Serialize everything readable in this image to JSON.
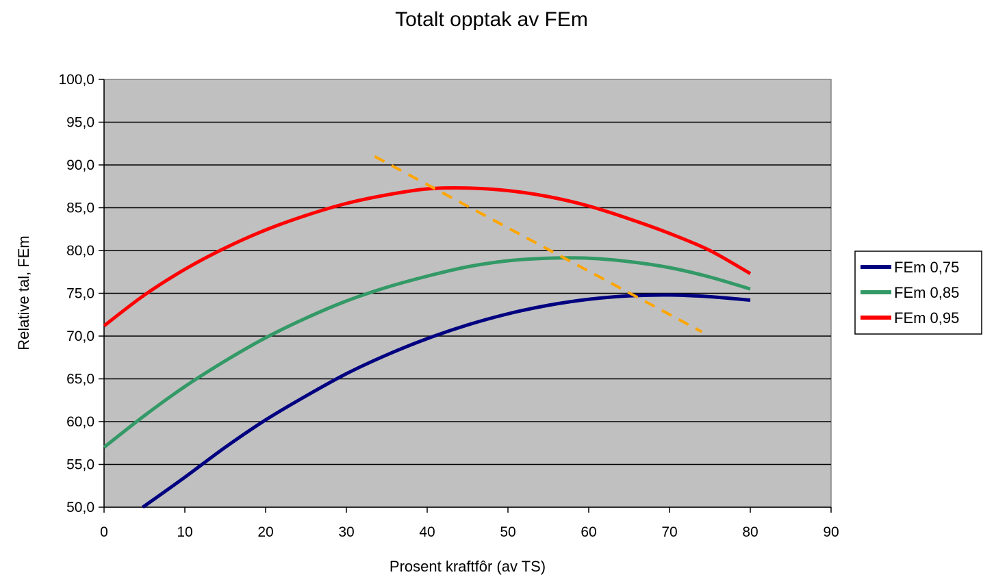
{
  "chart_data": {
    "type": "line",
    "title": "Totalt opptak av FEm",
    "xlabel": "Prosent kraftfôr (av TS)",
    "ylabel": "Relative tal,  FEm",
    "xlim": [
      0,
      90
    ],
    "ylim": [
      50,
      100
    ],
    "x_ticks": [
      0,
      10,
      20,
      30,
      40,
      50,
      60,
      70,
      80,
      90
    ],
    "x_tick_labels": [
      "0",
      "10",
      "20",
      "30",
      "40",
      "50",
      "60",
      "70",
      "80",
      "90"
    ],
    "y_ticks": [
      50,
      55,
      60,
      65,
      70,
      75,
      80,
      85,
      90,
      95,
      100
    ],
    "y_tick_labels": [
      "50,0",
      "55,0",
      "60,0",
      "65,0",
      "70,0",
      "75,0",
      "80,0",
      "85,0",
      "90,0",
      "95,0",
      "100,0"
    ],
    "grid": "horizontal",
    "legend_position": "right",
    "plot_background": "#c0c0c0",
    "x": [
      0,
      5,
      10,
      15,
      20,
      25,
      30,
      35,
      40,
      45,
      50,
      55,
      60,
      65,
      70,
      75,
      80
    ],
    "series": [
      {
        "name": "FEm 0,75",
        "color": "#000080",
        "x": [
          4.8,
          10,
          15,
          20,
          25,
          30,
          35,
          40,
          45,
          50,
          55,
          60,
          65,
          70,
          75,
          80
        ],
        "values": [
          50.0,
          53.5,
          57.0,
          60.2,
          63.0,
          65.6,
          67.8,
          69.7,
          71.3,
          72.6,
          73.6,
          74.3,
          74.7,
          74.8,
          74.6,
          74.2
        ]
      },
      {
        "name": "FEm 0,85",
        "color": "#339966",
        "x": [
          0,
          5,
          10,
          15,
          20,
          25,
          30,
          35,
          40,
          45,
          50,
          55,
          60,
          65,
          70,
          75,
          80
        ],
        "values": [
          57.0,
          60.7,
          64.1,
          67.1,
          69.8,
          72.1,
          74.1,
          75.7,
          77.0,
          78.1,
          78.8,
          79.1,
          79.1,
          78.7,
          78.0,
          76.9,
          75.5
        ]
      },
      {
        "name": "FEm 0,95",
        "color": "#ff0000",
        "x": [
          0,
          5,
          10,
          15,
          20,
          25,
          30,
          35,
          40,
          45,
          50,
          55,
          60,
          65,
          70,
          75,
          80
        ],
        "values": [
          71.2,
          74.8,
          77.8,
          80.3,
          82.4,
          84.1,
          85.5,
          86.5,
          87.2,
          87.3,
          87.0,
          86.3,
          85.2,
          83.7,
          82.0,
          80.0,
          77.3
        ]
      }
    ],
    "annotation_line": {
      "style": "dashed",
      "color": "#ffa500",
      "x": [
        33.5,
        74
      ],
      "values": [
        91.0,
        70.5
      ]
    }
  }
}
